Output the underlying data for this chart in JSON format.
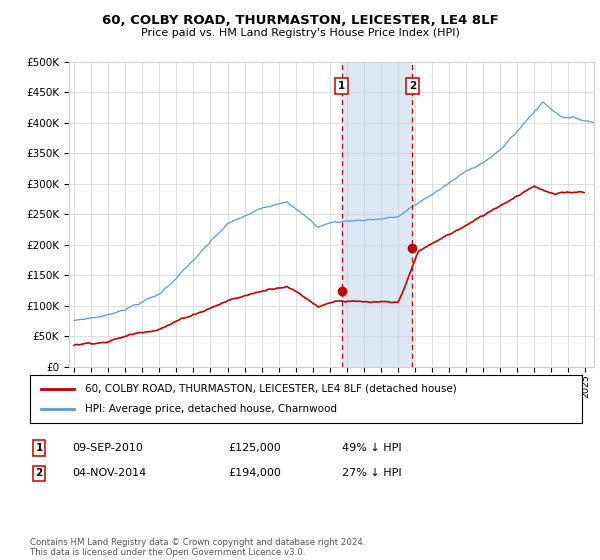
{
  "title": "60, COLBY ROAD, THURMASTON, LEICESTER, LE4 8LF",
  "subtitle": "Price paid vs. HM Land Registry's House Price Index (HPI)",
  "legend_line1": "60, COLBY ROAD, THURMASTON, LEICESTER, LE4 8LF (detached house)",
  "legend_line2": "HPI: Average price, detached house, Charnwood",
  "transaction1": {
    "label": "1",
    "date": "09-SEP-2010",
    "price": "£125,000",
    "pct": "49% ↓ HPI",
    "year": 2010.7,
    "price_val": 125000
  },
  "transaction2": {
    "label": "2",
    "date": "04-NOV-2014",
    "price": "£194,000",
    "pct": "27% ↓ HPI",
    "year": 2014.85,
    "price_val": 194000
  },
  "footer": "Contains HM Land Registry data © Crown copyright and database right 2024.\nThis data is licensed under the Open Government Licence v3.0.",
  "hpi_color": "#5b9bd5",
  "price_color": "#c00000",
  "vline_color": "#c00000",
  "highlight_color": "#dce9f5",
  "ylim": [
    0,
    500000
  ],
  "ytick_vals": [
    0,
    50000,
    100000,
    150000,
    200000,
    250000,
    300000,
    350000,
    400000,
    450000,
    500000
  ],
  "ytick_labels": [
    "£0",
    "£50K",
    "£100K",
    "£150K",
    "£200K",
    "£250K",
    "£300K",
    "£350K",
    "£400K",
    "£450K",
    "£500K"
  ],
  "xlim_start": 1994.7,
  "xlim_end": 2025.5,
  "bg_color": "#ffffff",
  "grid_color": "#d0d0d0"
}
